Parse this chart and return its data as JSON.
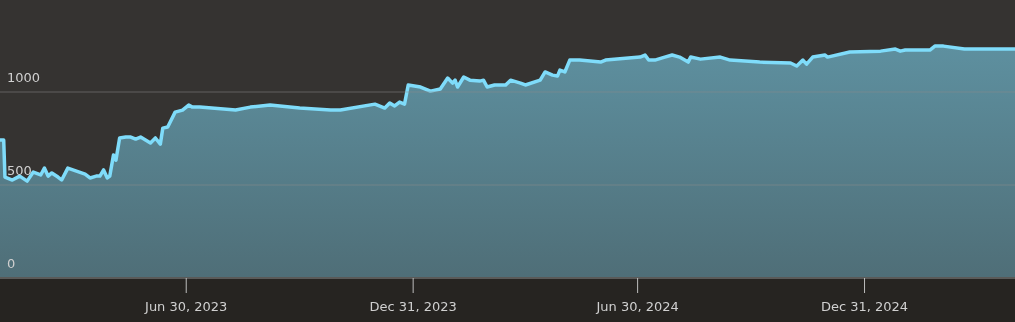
{
  "chart_data": {
    "type": "area",
    "x": [
      "2023-01-30",
      "2023-02-02",
      "2023-02-03",
      "2023-02-09",
      "2023-02-15",
      "2023-02-21",
      "2023-02-26",
      "2023-03-04",
      "2023-03-07",
      "2023-03-10",
      "2023-03-13",
      "2023-03-18",
      "2023-03-21",
      "2023-03-26",
      "2023-04-09",
      "2023-04-13",
      "2023-04-18",
      "2023-04-21",
      "2023-04-24",
      "2023-04-27",
      "2023-04-29",
      "2023-05-02",
      "2023-05-04",
      "2023-05-07",
      "2023-05-12",
      "2023-05-16",
      "2023-05-20",
      "2023-05-24",
      "2023-05-28",
      "2023-06-01",
      "2023-06-05",
      "2023-06-09",
      "2023-06-11",
      "2023-06-15",
      "2023-06-21",
      "2023-06-27",
      "2023-07-02",
      "2023-07-05",
      "2023-07-11",
      "2023-08-09",
      "2023-08-21",
      "2023-09-06",
      "2023-09-30",
      "2023-10-25",
      "2023-11-02",
      "2023-11-30",
      "2023-12-08",
      "2023-12-12",
      "2023-12-16",
      "2023-12-20",
      "2023-12-24",
      "2023-12-27",
      "2024-01-06",
      "2024-01-14",
      "2024-01-22",
      "2024-01-28",
      "2024-02-01",
      "2024-02-03",
      "2024-02-05",
      "2024-02-10",
      "2024-02-15",
      "2024-02-23",
      "2024-02-26",
      "2024-02-29",
      "2024-03-06",
      "2024-03-15",
      "2024-03-19",
      "2024-03-27",
      "2024-03-31",
      "2024-04-12",
      "2024-04-16",
      "2024-04-22",
      "2024-04-26",
      "2024-04-28",
      "2024-05-02",
      "2024-05-06",
      "2024-05-14",
      "2024-05-31",
      "2024-06-04",
      "2024-07-02",
      "2024-07-06",
      "2024-07-09",
      "2024-07-14",
      "2024-07-22",
      "2024-07-28",
      "2024-08-03",
      "2024-08-10",
      "2024-08-12",
      "2024-08-20",
      "2024-09-05",
      "2024-09-13",
      "2024-10-07",
      "2024-11-01",
      "2024-11-06",
      "2024-11-11",
      "2024-11-14",
      "2024-11-19",
      "2024-11-29",
      "2024-12-01",
      "2024-12-19",
      "2025-01-13",
      "2025-01-25",
      "2025-01-29",
      "2025-02-02",
      "2025-02-22",
      "2025-02-26",
      "2025-03-05",
      "2025-03-22",
      "2025-05-02"
    ],
    "series": [
      {
        "color": "#7fdcfa",
        "values": [
          742,
          742,
          543,
          527,
          548,
          521,
          570,
          554,
          591,
          548,
          565,
          543,
          527,
          591,
          559,
          538,
          548,
          548,
          581,
          538,
          548,
          661,
          634,
          753,
          758,
          758,
          747,
          758,
          742,
          726,
          753,
          720,
          806,
          812,
          892,
          903,
          930,
          919,
          919,
          903,
          919,
          930,
          914,
          903,
          903,
          935,
          914,
          941,
          925,
          946,
          935,
          1038,
          1027,
          1005,
          1016,
          1075,
          1048,
          1064,
          1027,
          1081,
          1064,
          1059,
          1064,
          1027,
          1038,
          1038,
          1064,
          1048,
          1038,
          1064,
          1108,
          1091,
          1086,
          1118,
          1108,
          1172,
          1172,
          1161,
          1172,
          1188,
          1199,
          1172,
          1172,
          1188,
          1199,
          1188,
          1161,
          1188,
          1177,
          1188,
          1172,
          1161,
          1156,
          1140,
          1172,
          1150,
          1188,
          1199,
          1188,
          1215,
          1220,
          1231,
          1220,
          1226,
          1226,
          1247,
          1247,
          1231,
          1231
        ]
      }
    ],
    "xlim": [
      "2023-01-30",
      "2025-05-02"
    ],
    "xticks": [
      {
        "value": "2023-06-30",
        "label": "Jun 30, 2023"
      },
      {
        "value": "2023-12-31",
        "label": "Dec 31, 2023"
      },
      {
        "value": "2024-06-30",
        "label": "Jun 30, 2024"
      },
      {
        "value": "2024-12-31",
        "label": "Dec 31, 2024"
      }
    ],
    "ylim": [
      0,
      1495
    ],
    "yticks": [
      0,
      500,
      1000
    ],
    "grid": "y"
  }
}
